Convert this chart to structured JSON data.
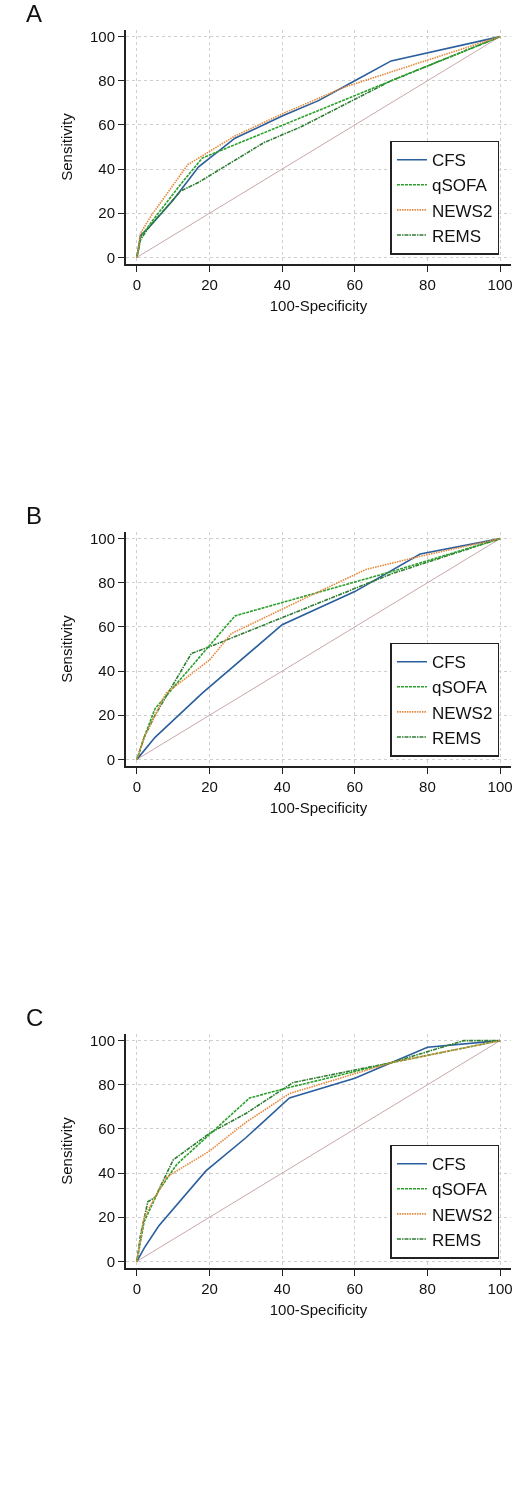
{
  "chart_data": [
    {
      "type": "line",
      "title": "A",
      "xlabel": "100-Specificity",
      "ylabel": "Sensitivity",
      "xlim": [
        -3,
        103
      ],
      "ylim": [
        -3,
        103
      ],
      "xticks": [
        0,
        20,
        40,
        60,
        80,
        100
      ],
      "yticks": [
        0,
        20,
        40,
        60,
        80,
        100
      ],
      "grid": true,
      "legend": "bottom right",
      "marker": "none",
      "series": [
        {
          "name": "CFS",
          "color": "#2a5e9c",
          "line_style": "solid",
          "x": [
            0,
            1,
            3,
            10,
            17,
            27,
            40,
            50,
            60,
            70,
            100
          ],
          "values": [
            0,
            10,
            13,
            26,
            41,
            54,
            64,
            71,
            80,
            89,
            100
          ]
        },
        {
          "name": "qSOFA",
          "color": "#2ca02c",
          "line_style": "dashed",
          "x": [
            0,
            1,
            4,
            12,
            18,
            70,
            100
          ],
          "values": [
            0,
            9,
            16,
            33,
            45,
            80,
            100
          ]
        },
        {
          "name": "NEWS2",
          "color": "#e5883c",
          "line_style": "dotted",
          "x": [
            0,
            1,
            4,
            14,
            27,
            40,
            57,
            70,
            100
          ],
          "values": [
            0,
            11,
            19,
            42,
            55,
            65,
            77,
            84,
            100
          ]
        },
        {
          "name": "REMS",
          "color": "#2e7d32",
          "line_style": "dashdot",
          "x": [
            0,
            1,
            3,
            12,
            17,
            35,
            45,
            70,
            100
          ],
          "values": [
            0,
            8,
            13,
            30,
            34,
            52,
            59,
            80,
            100
          ]
        },
        {
          "color": "#c8a8a8",
          "line_style": "solid",
          "x": [
            0,
            100
          ],
          "values": [
            0,
            100
          ]
        }
      ]
    },
    {
      "type": "line",
      "title": "B",
      "xlabel": "100-Specificity",
      "ylabel": "Sensitivity",
      "xlim": [
        -3,
        103
      ],
      "ylim": [
        -3,
        103
      ],
      "xticks": [
        0,
        20,
        40,
        60,
        80,
        100
      ],
      "yticks": [
        0,
        20,
        40,
        60,
        80,
        100
      ],
      "grid": true,
      "legend": "bottom right",
      "marker": "none",
      "series": [
        {
          "name": "CFS",
          "color": "#2a5e9c",
          "line_style": "solid",
          "x": [
            0,
            5,
            18,
            40,
            60,
            78,
            100
          ],
          "values": [
            0,
            10,
            30,
            61,
            76,
            93,
            100
          ]
        },
        {
          "name": "qSOFA",
          "color": "#2ca02c",
          "line_style": "dashed",
          "x": [
            0,
            2,
            5,
            15,
            27,
            70,
            100
          ],
          "values": [
            0,
            10,
            23,
            42,
            65,
            85,
            100
          ]
        },
        {
          "name": "NEWS2",
          "color": "#e5883c",
          "line_style": "dotted",
          "x": [
            0,
            2,
            8,
            20,
            26,
            45,
            63,
            78,
            100
          ],
          "values": [
            0,
            10,
            30,
            45,
            57,
            72,
            86,
            92,
            100
          ]
        },
        {
          "name": "REMS",
          "color": "#2e7d32",
          "line_style": "dashdot",
          "x": [
            0,
            2,
            5,
            15,
            20,
            70,
            100
          ],
          "values": [
            0,
            10,
            20,
            48,
            51,
            84,
            100
          ]
        },
        {
          "color": "#c8a8a8",
          "line_style": "solid",
          "x": [
            0,
            100
          ],
          "values": [
            0,
            100
          ]
        }
      ]
    },
    {
      "type": "line",
      "title": "C",
      "xlabel": "100-Specificity",
      "ylabel": "Sensitivity",
      "xlim": [
        -3,
        103
      ],
      "ylim": [
        -3,
        103
      ],
      "xticks": [
        0,
        20,
        40,
        60,
        80,
        100
      ],
      "yticks": [
        0,
        20,
        40,
        60,
        80,
        100
      ],
      "grid": true,
      "legend": "bottom right",
      "marker": "none",
      "series": [
        {
          "name": "CFS",
          "color": "#2a5e9c",
          "line_style": "solid",
          "x": [
            0,
            2,
            6,
            19,
            30,
            42,
            60,
            80,
            100
          ],
          "values": [
            0,
            6,
            16,
            41,
            56,
            74,
            83,
            97,
            100
          ]
        },
        {
          "name": "qSOFA",
          "color": "#2ca02c",
          "line_style": "dashed",
          "x": [
            0,
            2,
            6,
            11,
            31,
            40,
            70,
            100
          ],
          "values": [
            0,
            18,
            32,
            44,
            74,
            78,
            90,
            100
          ]
        },
        {
          "name": "NEWS2",
          "color": "#e5883c",
          "line_style": "dotted",
          "x": [
            0,
            2,
            8,
            20,
            30,
            42,
            70,
            100
          ],
          "values": [
            0,
            20,
            38,
            50,
            63,
            76,
            90,
            100
          ]
        },
        {
          "name": "REMS",
          "color": "#2e7d32",
          "line_style": "dashdot",
          "x": [
            0,
            1,
            3,
            5,
            10,
            20,
            30,
            43,
            70,
            90,
            100
          ],
          "values": [
            0,
            12,
            27,
            29,
            46,
            58,
            67,
            81,
            90,
            100,
            100
          ]
        },
        {
          "color": "#c8a8a8",
          "line_style": "solid",
          "x": [
            0,
            100
          ],
          "values": [
            0,
            100
          ]
        }
      ]
    }
  ]
}
